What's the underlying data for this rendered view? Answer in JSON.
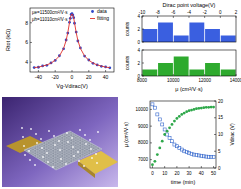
{
  "chart_data": [
    {
      "type": "line",
      "xlabel": "Vg-Vdirac(V)",
      "ylabel": "Rtot (kΩ)",
      "annotations": [
        "μe=11500cm²/V·s",
        "μh=11010cm²/V·s"
      ],
      "x": [
        -45,
        -40,
        -35,
        -30,
        -25,
        -20,
        -15,
        -10,
        -7,
        -5,
        -3,
        -2,
        -1,
        0,
        1,
        2,
        3,
        5,
        7,
        10,
        15,
        20,
        25,
        30,
        35,
        40,
        45
      ],
      "series": [
        {
          "name": "data",
          "type": "scatter",
          "marker": "circle",
          "color": "#2f47c8",
          "values": [
            3.45,
            3.48,
            3.62,
            3.68,
            3.92,
            4.18,
            4.65,
            5.35,
            6.25,
            6.95,
            8.05,
            8.45,
            8.85,
            8.92,
            8.78,
            8.52,
            7.95,
            7.05,
            6.15,
            5.45,
            4.62,
            4.22,
            3.88,
            3.72,
            3.58,
            3.52,
            3.42
          ]
        },
        {
          "name": "fitting",
          "type": "line",
          "color": "#e0302a",
          "values": [
            3.44,
            3.5,
            3.6,
            3.72,
            3.9,
            4.2,
            4.62,
            5.4,
            6.2,
            7.0,
            8.0,
            8.5,
            8.8,
            8.9,
            8.8,
            8.5,
            8.0,
            7.0,
            6.2,
            5.4,
            4.62,
            4.2,
            3.9,
            3.72,
            3.6,
            3.5,
            3.44
          ]
        }
      ],
      "legend": "top-right",
      "xlim": [
        -50,
        50
      ],
      "xticks": [
        -40,
        -20,
        0,
        20,
        40
      ],
      "ylim": [
        3,
        9.5
      ],
      "yticks": [
        4,
        6,
        8
      ]
    },
    {
      "type": "histogram",
      "title": "Dirac point voltage(V)",
      "ylabel": "counts",
      "bins": [
        -10,
        -8,
        -6,
        -4,
        -2,
        0,
        2
      ],
      "values": [
        2,
        3,
        1,
        3,
        2,
        1
      ],
      "color": "#3a5fe0",
      "xlim": [
        -10,
        2
      ],
      "xticks": [
        -10,
        -8,
        -6,
        -4,
        -2,
        0,
        2
      ],
      "ylim": [
        0,
        4
      ],
      "yticks": [
        0,
        2,
        4
      ]
    },
    {
      "type": "histogram",
      "xlabel": "μ (cm²/V·s)",
      "ylabel": "counts",
      "bins": [
        8000,
        9000,
        10000,
        11000,
        12000,
        13000,
        14000
      ],
      "values": [
        1,
        2,
        3,
        1,
        2,
        1
      ],
      "color": "#2eaa2e",
      "xlim": [
        8000,
        14000
      ],
      "xticks": [
        8000,
        10000,
        12000,
        14000
      ],
      "ylim": [
        0,
        4
      ],
      "yticks": [
        0,
        2,
        4
      ]
    },
    {
      "type": "scatter",
      "xlabel": "time (min)",
      "ylabel": "μ (cm²/V·s)",
      "y2label": "Vdirac (V)",
      "x": [
        0,
        2,
        4,
        6,
        8,
        10,
        12,
        14,
        16,
        18,
        20,
        22,
        24,
        26,
        28,
        30,
        32,
        34,
        36,
        38,
        40,
        42,
        44,
        46,
        48,
        50
      ],
      "series": [
        {
          "color": "#3366cc",
          "marker": "square",
          "values": [
            10300,
            10100,
            9700,
            9400,
            9100,
            8800,
            8500,
            8300,
            8100,
            7900,
            7800,
            7700,
            7600,
            7500,
            7450,
            7400,
            7350,
            7300,
            7280,
            7250,
            7230,
            7200,
            7180,
            7170,
            7160,
            7150
          ]
        },
        {
          "color": "#2ea84a",
          "marker": "circle",
          "axis": "y2",
          "values": [
            1,
            2,
            4,
            6,
            8,
            10,
            11,
            12,
            13,
            14,
            14.8,
            15.4,
            16,
            16.4,
            16.8,
            17.1,
            17.3,
            17.5,
            17.7,
            17.8,
            17.9,
            18,
            18.1,
            18.1,
            18.2,
            18.2
          ]
        }
      ],
      "xlim": [
        -2,
        52
      ],
      "xticks": [
        0,
        10,
        20,
        30,
        40,
        50
      ],
      "ylim": [
        6500,
        10500
      ],
      "yticks": [
        7000,
        8000,
        9000,
        10000
      ],
      "y2lim": [
        0,
        20
      ],
      "y2ticks": [
        0,
        5,
        10,
        15,
        20
      ]
    }
  ]
}
